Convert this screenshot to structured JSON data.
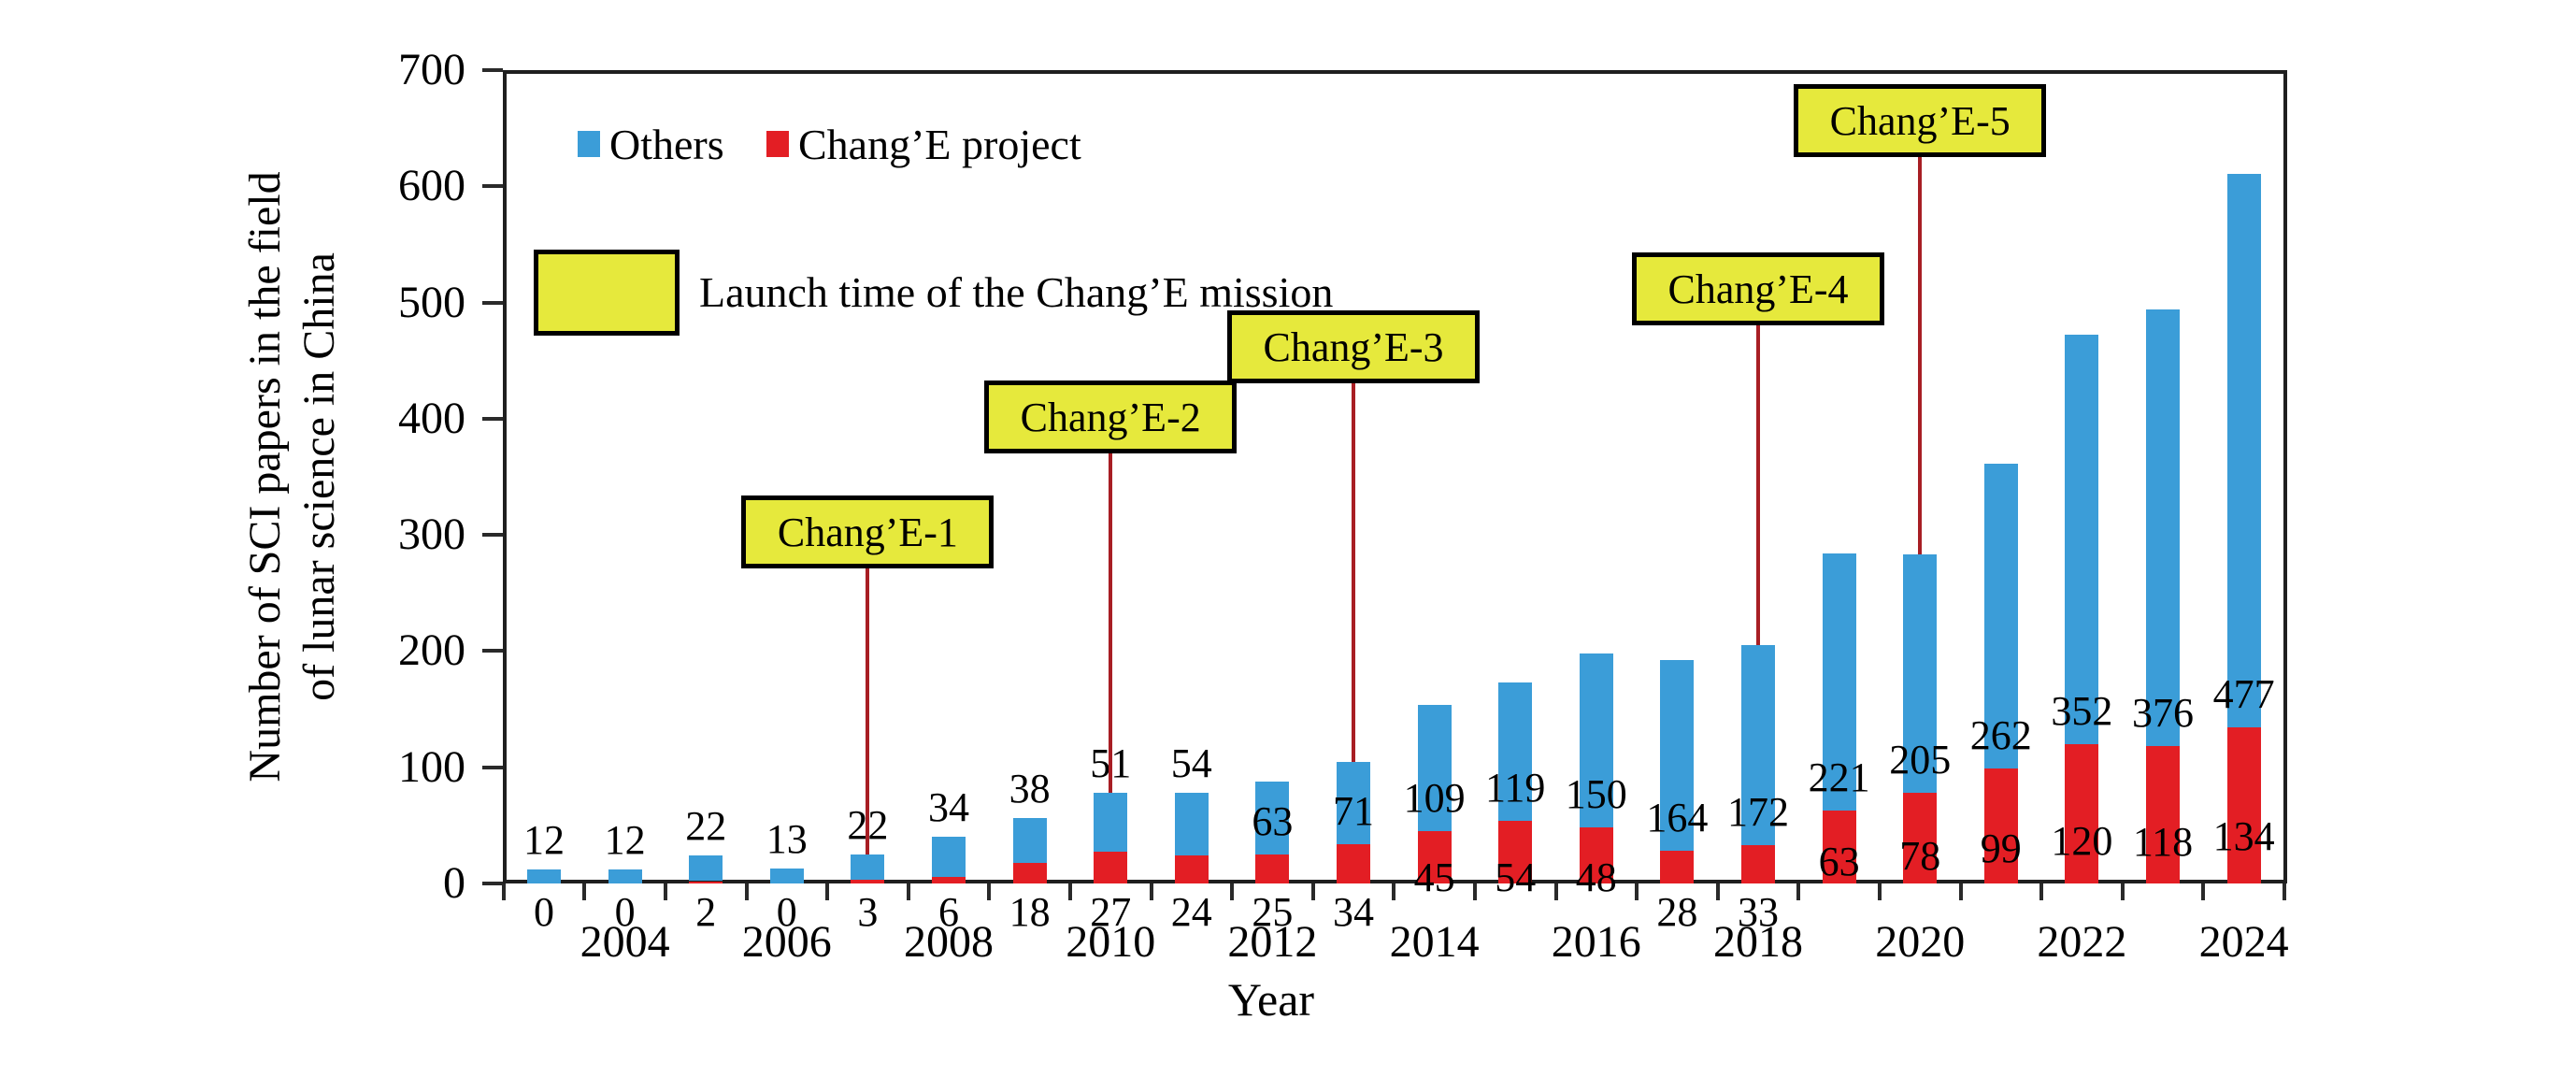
{
  "figure": {
    "y_axis_title_line1": "Number of SCI papers in the field",
    "y_axis_title_line2": "of lunar science in China",
    "x_axis_title": "Year"
  },
  "legend": {
    "others_label": "Others",
    "change_label": "Chang’E project",
    "launch_label": "Launch time of the Chang’E mission",
    "others_color": "#3B9DD8",
    "change_color": "#E31E24",
    "launch_box_color": "#E6E93C",
    "annotation_line_color": "#A81E24"
  },
  "chart_data": {
    "type": "bar",
    "stacked": true,
    "title": "",
    "xlabel": "Year",
    "ylabel": "Number of SCI papers in the field of lunar science in China",
    "ylim": [
      0,
      700
    ],
    "y_ticks": [
      0,
      100,
      200,
      300,
      400,
      500,
      600,
      700
    ],
    "grid": false,
    "x": [
      2003,
      2004,
      2005,
      2006,
      2007,
      2008,
      2009,
      2010,
      2011,
      2012,
      2013,
      2014,
      2015,
      2016,
      2017,
      2018,
      2019,
      2020,
      2021,
      2022,
      2023,
      2024
    ],
    "x_tick_labels": [
      "2004",
      "2006",
      "2008",
      "2010",
      "2012",
      "2014",
      "2016",
      "2018",
      "2020",
      "2022",
      "2024"
    ],
    "series": [
      {
        "name": "Chang’E project",
        "color": "#E31E24",
        "values": [
          0,
          0,
          2,
          0,
          3,
          6,
          18,
          27,
          24,
          25,
          34,
          45,
          54,
          48,
          28,
          33,
          63,
          78,
          99,
          120,
          118,
          134
        ]
      },
      {
        "name": "Others",
        "color": "#3B9DD8",
        "values": [
          12,
          12,
          22,
          13,
          22,
          34,
          38,
          51,
          54,
          63,
          71,
          109,
          119,
          150,
          164,
          172,
          221,
          205,
          262,
          352,
          376,
          477
        ]
      }
    ],
    "annotations": [
      {
        "label": "Chang’E-1",
        "year": 2007
      },
      {
        "label": "Chang’E-2",
        "year": 2010
      },
      {
        "label": "Chang’E-3",
        "year": 2013
      },
      {
        "label": "Chang’E-4",
        "year": 2018
      },
      {
        "label": "Chang’E-5",
        "year": 2020
      }
    ],
    "legend_position": "top-left-inside"
  }
}
